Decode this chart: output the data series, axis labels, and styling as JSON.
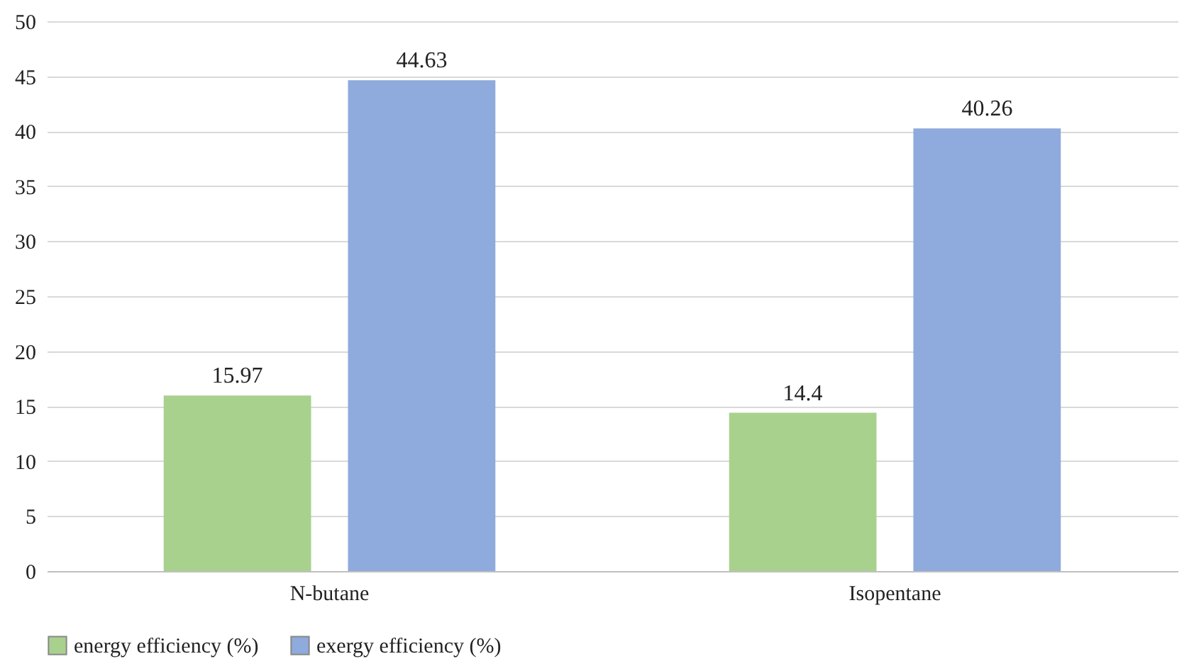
{
  "chart_data": {
    "type": "bar",
    "categories": [
      "N-butane",
      "Isopentane"
    ],
    "series": [
      {
        "name": "energy efficiency (%)",
        "color": "#a9d18e",
        "values": [
          15.97,
          14.4
        ]
      },
      {
        "name": "exergy efficiency (%)",
        "color": "#8faadc",
        "values": [
          44.63,
          40.26
        ]
      }
    ],
    "ylim": [
      0,
      50
    ],
    "yticks": [
      0,
      5,
      10,
      15,
      20,
      25,
      30,
      35,
      40,
      45,
      50
    ],
    "grid": "y",
    "legend": "bottom",
    "data_labels": true
  }
}
